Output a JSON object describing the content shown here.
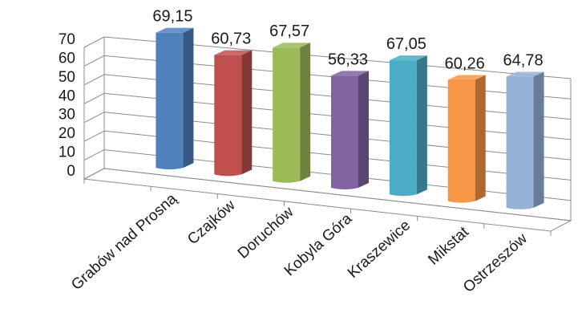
{
  "chart_data": {
    "type": "bar",
    "categories": [
      "Grabów nad Prosną",
      "Czajków",
      "Doruchów",
      "Kobyla Góra",
      "Kraszewice",
      "Mikstat",
      "Ostrzeszów"
    ],
    "values": [
      69.15,
      60.73,
      67.57,
      56.33,
      67.05,
      60.26,
      64.78
    ],
    "data_labels": [
      "69,15",
      "60,73",
      "67,57",
      "56,33",
      "67,05",
      "60,26",
      "64,78"
    ],
    "ylim": [
      0,
      70
    ],
    "yticks": [
      "0",
      "10",
      "20",
      "30",
      "40",
      "50",
      "60",
      "70"
    ],
    "grid": true,
    "colors": [
      "#4f81bd",
      "#c0504d",
      "#9bbb59",
      "#8064a2",
      "#4bacc6",
      "#f79646",
      "#95b3d7"
    ]
  }
}
